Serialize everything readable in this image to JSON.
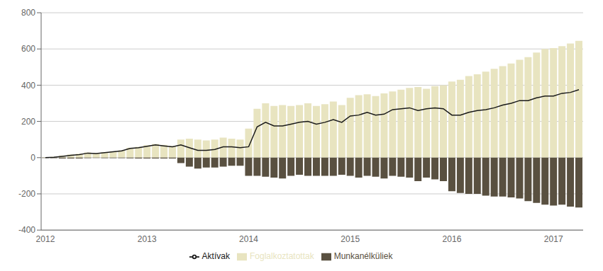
{
  "chart_data": {
    "type": "bar",
    "stacked": true,
    "grid": true,
    "legend": "bottom",
    "categories": [
      "2012",
      null,
      null,
      null,
      null,
      null,
      null,
      null,
      null,
      null,
      null,
      null,
      "2013",
      null,
      null,
      null,
      null,
      null,
      null,
      null,
      null,
      null,
      null,
      null,
      "2014",
      null,
      null,
      null,
      null,
      null,
      null,
      null,
      null,
      null,
      null,
      null,
      "2015",
      null,
      null,
      null,
      null,
      null,
      null,
      null,
      null,
      null,
      null,
      null,
      "2016",
      null,
      null,
      null,
      null,
      null,
      null,
      null,
      null,
      null,
      null,
      null,
      "2017",
      null,
      null,
      null
    ],
    "ylim": [
      -400,
      800
    ],
    "yticks": [
      -400,
      -200,
      0,
      200,
      400,
      600,
      800
    ],
    "series": [
      {
        "name": "Foglalkoztatottak",
        "type": "bar",
        "color": "#e8e4c0",
        "values": [
          2,
          5,
          12,
          18,
          22,
          28,
          25,
          30,
          35,
          40,
          55,
          60,
          68,
          75,
          70,
          65,
          100,
          105,
          100,
          95,
          100,
          110,
          105,
          100,
          160,
          270,
          300,
          285,
          290,
          285,
          290,
          300,
          285,
          295,
          310,
          290,
          330,
          345,
          350,
          340,
          355,
          365,
          375,
          385,
          390,
          380,
          395,
          400,
          420,
          430,
          450,
          460,
          475,
          490,
          505,
          520,
          540,
          555,
          580,
          600,
          605,
          615,
          630,
          645
        ]
      },
      {
        "name": "Munkanélküliek",
        "type": "bar",
        "color": "#595040",
        "values": [
          -2,
          -3,
          -5,
          -5,
          -5,
          -3,
          -2,
          -3,
          -3,
          -3,
          -4,
          -5,
          -5,
          -5,
          -5,
          -5,
          -30,
          -50,
          -60,
          -55,
          -55,
          -50,
          -45,
          -45,
          -100,
          -100,
          -105,
          -110,
          -115,
          -100,
          -95,
          -100,
          -100,
          -100,
          -100,
          -95,
          -100,
          -110,
          -100,
          -105,
          -115,
          -100,
          -105,
          -110,
          -130,
          -110,
          -120,
          -130,
          -185,
          -195,
          -200,
          -200,
          -210,
          -215,
          -215,
          -220,
          -225,
          -240,
          -250,
          -260,
          -265,
          -260,
          -270,
          -275
        ]
      },
      {
        "name": "Aktívak",
        "type": "line",
        "color": "#1a1a1a",
        "values": [
          0,
          2,
          7,
          13,
          17,
          25,
          23,
          27,
          32,
          37,
          51,
          55,
          63,
          70,
          65,
          60,
          70,
          55,
          40,
          40,
          45,
          60,
          60,
          55,
          60,
          170,
          195,
          175,
          175,
          185,
          195,
          200,
          185,
          195,
          210,
          195,
          230,
          235,
          250,
          235,
          240,
          265,
          270,
          275,
          260,
          270,
          275,
          270,
          235,
          235,
          250,
          260,
          265,
          275,
          290,
          300,
          315,
          315,
          330,
          340,
          340,
          355,
          360,
          375
        ]
      }
    ]
  }
}
